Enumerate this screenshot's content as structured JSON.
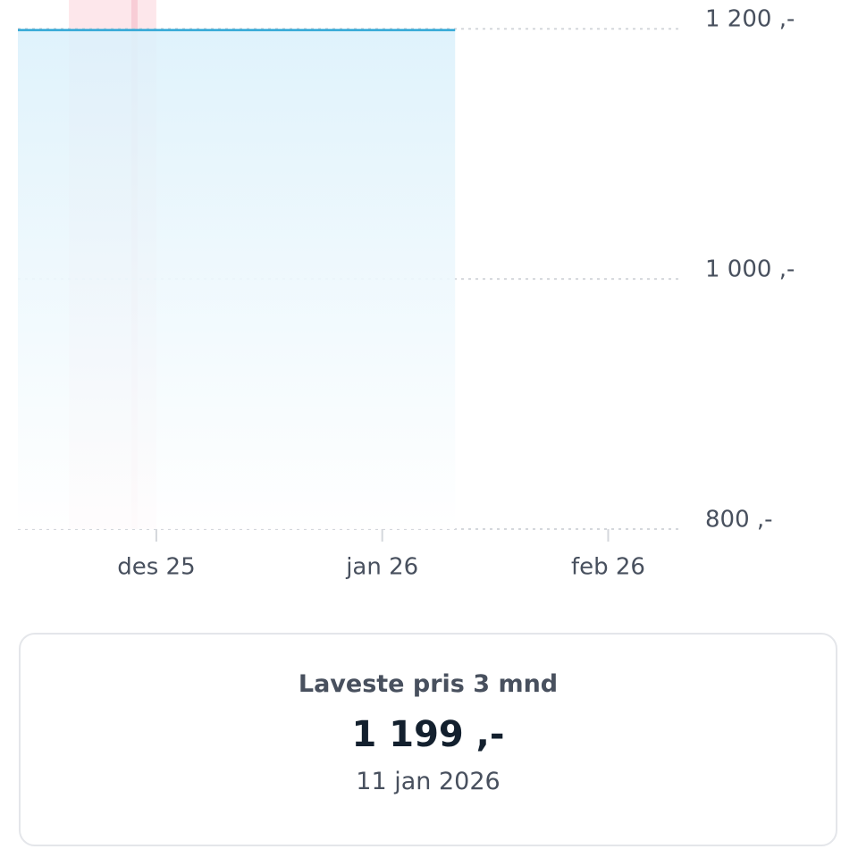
{
  "chart_data": {
    "type": "line",
    "x": [
      "2025-11-12",
      "2026-01-11"
    ],
    "series": [
      {
        "color": "#2ea6d6",
        "values": [
          1199,
          1199
        ]
      }
    ],
    "xlim": [
      "2025-11-12",
      "2026-02-11"
    ],
    "xticks": [
      {
        "value": "2025-12-01",
        "label": "des 25"
      },
      {
        "value": "2026-01-01",
        "label": "jan 26"
      },
      {
        "value": "2026-02-01",
        "label": "feb 26"
      }
    ],
    "ylim": [
      800,
      1223
    ],
    "yticks": [
      {
        "value": 800,
        "label": "800 ,-"
      },
      {
        "value": 1000,
        "label": "1 000 ,-"
      },
      {
        "value": 1200,
        "label": "1 200 ,-"
      }
    ],
    "grid": true,
    "bands": [
      {
        "start": "2025-11-19",
        "end": "2025-12-01",
        "color": "#fde3e8"
      }
    ],
    "markers": [
      {
        "x": "2025-11-28",
        "color": "#f8cdd6"
      }
    ]
  },
  "card": {
    "title": "Laveste pris 3 mnd",
    "price": "1 199 ,-",
    "date": "11 jan 2026"
  }
}
